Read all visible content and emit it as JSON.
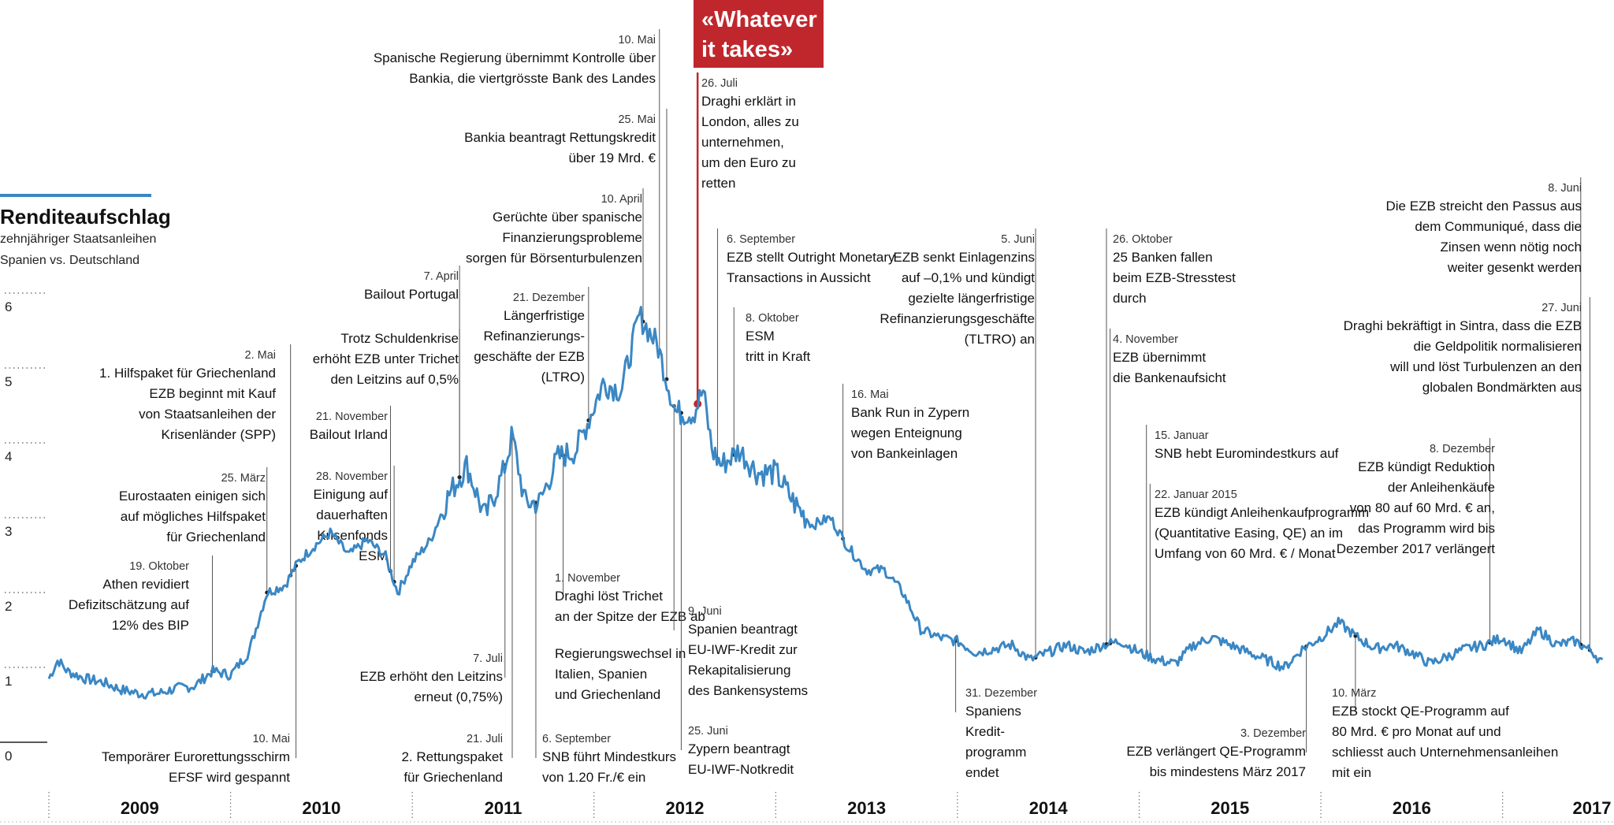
{
  "chart_data": {
    "type": "line",
    "title": "Renditeaufschlag",
    "subtitle": [
      "zehnjähriger Staatsanleihen",
      "Spanien vs. Deutschland"
    ],
    "ylim": [
      0,
      6
    ],
    "yticks": [
      "0",
      "1",
      "2",
      "3",
      "4",
      "5",
      "6"
    ],
    "x_axis_labels": [
      "2009",
      "2010",
      "2011",
      "2012",
      "2013",
      "2014",
      "2015",
      "2016",
      "2017"
    ],
    "xlim": [
      2009.0,
      2017.6
    ],
    "grid": false,
    "series": [
      {
        "color": "#3a87c4",
        "x": [
          2009.0,
          2009.05,
          2009.1,
          2009.2,
          2009.3,
          2009.4,
          2009.5,
          2009.6,
          2009.7,
          2009.8,
          2009.9,
          2010.0,
          2010.1,
          2010.2,
          2010.3,
          2010.37,
          2010.45,
          2010.55,
          2010.65,
          2010.75,
          2010.85,
          2010.92,
          2011.0,
          2011.1,
          2011.2,
          2011.3,
          2011.4,
          2011.5,
          2011.55,
          2011.62,
          2011.7,
          2011.8,
          2011.9,
          2011.97,
          2012.05,
          2012.15,
          2012.25,
          2012.35,
          2012.45,
          2012.55,
          2012.6,
          2012.65,
          2012.7,
          2012.8,
          2012.9,
          2013.0,
          2013.1,
          2013.2,
          2013.3,
          2013.4,
          2013.5,
          2013.6,
          2013.7,
          2013.8,
          2013.9,
          2014.0,
          2014.1,
          2014.2,
          2014.3,
          2014.4,
          2014.5,
          2014.6,
          2014.7,
          2014.8,
          2014.9,
          2015.0,
          2015.1,
          2015.2,
          2015.3,
          2015.4,
          2015.5,
          2015.6,
          2015.7,
          2015.8,
          2015.9,
          2016.0,
          2016.1,
          2016.2,
          2016.3,
          2016.4,
          2016.5,
          2016.6,
          2016.7,
          2016.8,
          2016.9,
          2017.0,
          2017.1,
          2017.2,
          2017.3,
          2017.4,
          2017.5,
          2017.55
        ],
        "values": [
          0.85,
          1.1,
          0.95,
          0.85,
          0.8,
          0.7,
          0.65,
          0.65,
          0.72,
          0.75,
          0.95,
          0.9,
          1.2,
          2.0,
          2.1,
          2.4,
          2.6,
          2.8,
          2.5,
          2.7,
          2.5,
          2.0,
          2.4,
          2.7,
          3.3,
          3.7,
          3.0,
          3.6,
          4.1,
          3.2,
          3.2,
          3.8,
          3.9,
          4.3,
          4.8,
          4.7,
          5.7,
          5.3,
          4.4,
          4.4,
          4.7,
          3.9,
          3.7,
          3.9,
          3.6,
          3.6,
          3.2,
          2.9,
          3.0,
          2.6,
          2.3,
          2.3,
          2.0,
          1.5,
          1.4,
          1.35,
          1.2,
          1.25,
          1.3,
          1.1,
          1.2,
          1.3,
          1.2,
          1.3,
          1.35,
          1.2,
          1.1,
          1.05,
          1.3,
          1.4,
          1.3,
          1.2,
          1.1,
          1.0,
          1.25,
          1.4,
          1.6,
          1.4,
          1.25,
          1.3,
          1.2,
          1.05,
          1.15,
          1.25,
          1.3,
          1.4,
          1.2,
          1.5,
          1.3,
          1.35,
          1.2,
          1.05
        ]
      }
    ],
    "annotations": [
      {
        "anchor_x": 2009.9,
        "date": "19. Oktober",
        "text": [
          "Athen revidiert",
          "Defizitschätzung auf",
          "12% des BIP"
        ]
      },
      {
        "anchor_x": 2010.2,
        "date": "25. März",
        "text": [
          "Eurostaaten einigen sich",
          "auf mögliches Hilfspaket",
          "für Griechenland"
        ]
      },
      {
        "anchor_x": 2010.33,
        "date": "2. Mai",
        "text": [
          "1. Hilfspaket für Griechenland",
          "EZB beginnt mit Kauf",
          "von Staatsanleihen der",
          "Krisenländer (SPP)"
        ]
      },
      {
        "anchor_x": 2010.36,
        "date": "10. Mai",
        "text": [
          "Temporärer Eurorettungsschirm",
          "EFSF wird gespannt"
        ]
      },
      {
        "anchor_x": 2010.88,
        "date": "21. November",
        "text": [
          "Bailout Irland"
        ]
      },
      {
        "anchor_x": 2010.9,
        "date": "28. November",
        "text": [
          "Einigung auf",
          "dauerhaften",
          "Krisenfonds",
          "ESM"
        ]
      },
      {
        "anchor_x": 2011.26,
        "date": "7. April",
        "text": [
          "Bailout Portugal"
        ]
      },
      {
        "anchor_x": 2011.26,
        "date": "",
        "text": [
          "Trotz Schuldenkrise",
          "erhöht EZB unter Trichet",
          "den Leitzins auf 0,5%"
        ]
      },
      {
        "anchor_x": 2011.51,
        "date": "7. Juli",
        "text": [
          "EZB erhöht den Leitzins",
          "erneut (0,75%)"
        ]
      },
      {
        "anchor_x": 2011.55,
        "date": "21. Juli",
        "text": [
          "2. Rettungspaket",
          "für Griechenland"
        ]
      },
      {
        "anchor_x": 2011.68,
        "date": "6. September",
        "text": [
          "SNB führt Mindestkurs",
          "von 1.20 Fr./€ ein"
        ]
      },
      {
        "anchor_x": 2011.83,
        "date": "1. November",
        "text": [
          "Draghi löst Trichet",
          "an der Spitze der EZB ab",
          "",
          "Regierungswechsel in",
          "Italien, Spanien",
          "und Griechenland"
        ]
      },
      {
        "anchor_x": 2011.97,
        "date": "21. Dezember",
        "text": [
          "Längerfristige",
          "Refinanzierungs-",
          "geschäfte der EZB",
          "(LTRO)"
        ]
      },
      {
        "anchor_x": 2012.27,
        "date": "10. April",
        "text": [
          "Gerüchte über spanische",
          "Finanzierungsprobleme",
          "sorgen für Börsenturbulenzen"
        ]
      },
      {
        "anchor_x": 2012.36,
        "date": "10. Mai",
        "text": [
          "Spanische Regierung übernimmt Kontrolle über",
          "Bankia, die viertgrösste Bank des Landes"
        ]
      },
      {
        "anchor_x": 2012.4,
        "date": "25. Mai",
        "text": [
          "Bankia beantragt Rettungskredit",
          "über 19 Mrd. €"
        ]
      },
      {
        "anchor_x": 2012.44,
        "date": "9. Juni",
        "text": [
          "Spanien beantragt",
          "EU-IWF-Kredit zur",
          "Rekapitalisierung",
          "des Bankensystems"
        ]
      },
      {
        "anchor_x": 2012.48,
        "date": "25. Juni",
        "text": [
          "Zypern beantragt",
          "EU-IWF-Notkredit"
        ]
      },
      {
        "anchor_x": 2012.57,
        "date": "26. Juli",
        "text": [
          "Draghi erklärt in",
          "London, alles zu",
          "unternehmen,",
          "um den Euro zu",
          "retten"
        ],
        "highlight": [
          "«Whatever",
          "it takes»"
        ]
      },
      {
        "anchor_x": 2012.68,
        "date": "6. September",
        "text": [
          "EZB stellt Outright Monetary",
          "Transactions in Aussicht"
        ]
      },
      {
        "anchor_x": 2012.77,
        "date": "8. Oktober",
        "text": [
          "ESM",
          "tritt in Kraft"
        ]
      },
      {
        "anchor_x": 2013.37,
        "date": "16. Mai",
        "text": [
          "Bank Run in Zypern",
          "wegen Enteignung",
          "von Bankeinlagen"
        ]
      },
      {
        "anchor_x": 2013.99,
        "date": "31. Dezember",
        "text": [
          "Spaniens",
          "Kredit-",
          "programm",
          "endet"
        ]
      },
      {
        "anchor_x": 2014.43,
        "date": "5. Juni",
        "text": [
          "EZB senkt Einlagenzins",
          "auf –0,1% und kündigt",
          "gezielte längerfristige",
          "Refinanzierungsgeschäfte",
          "(TLTRO) an"
        ]
      },
      {
        "anchor_x": 2014.82,
        "date": "26. Oktober",
        "text": [
          "25 Banken fallen",
          "beim EZB-Stresstest",
          "durch"
        ]
      },
      {
        "anchor_x": 2014.84,
        "date": "4. November",
        "text": [
          "EZB übernimmt",
          "die Bankenaufsicht"
        ]
      },
      {
        "anchor_x": 2015.04,
        "date": "15. Januar",
        "text": [
          "SNB hebt Euromindestkurs auf"
        ]
      },
      {
        "anchor_x": 2015.06,
        "date": "22. Januar 2015",
        "text": [
          "EZB kündigt Anleihenkaufprogramm",
          "(Quantitative Easing, QE) an im",
          "Umfang von 60 Mrd. € / Monat"
        ]
      },
      {
        "anchor_x": 2015.92,
        "date": "3. Dezember",
        "text": [
          "EZB verlängert QE-Programm",
          "bis mindestens März 2017"
        ]
      },
      {
        "anchor_x": 2016.19,
        "date": "10. März",
        "text": [
          "EZB stockt QE-Programm auf",
          "80 Mrd. € pro Monat auf und",
          "schliesst auch Unternehmensanleihen",
          "mit ein"
        ]
      },
      {
        "anchor_x": 2016.93,
        "date": "8. Dezember",
        "text": [
          "EZB kündigt  Reduktion",
          "der Anleihenkäufe",
          "von 80 auf 60 Mrd. € an,",
          "das Programm wird bis",
          "Dezember 2017 verlängert"
        ]
      },
      {
        "anchor_x": 2017.43,
        "date": "8. Juni",
        "text": [
          "Die EZB streicht den Passus aus",
          "dem Communiqué, dass die",
          "Zinsen wenn nötig noch",
          "weiter gesenkt werden"
        ]
      },
      {
        "anchor_x": 2017.48,
        "date": "27. Juni",
        "text": [
          "Draghi bekräftigt in Sintra, dass die EZB",
          "die Geldpolitik normalisieren",
          "will und löst Turbulenzen an den",
          "globalen Bondmärkten aus"
        ]
      }
    ]
  }
}
